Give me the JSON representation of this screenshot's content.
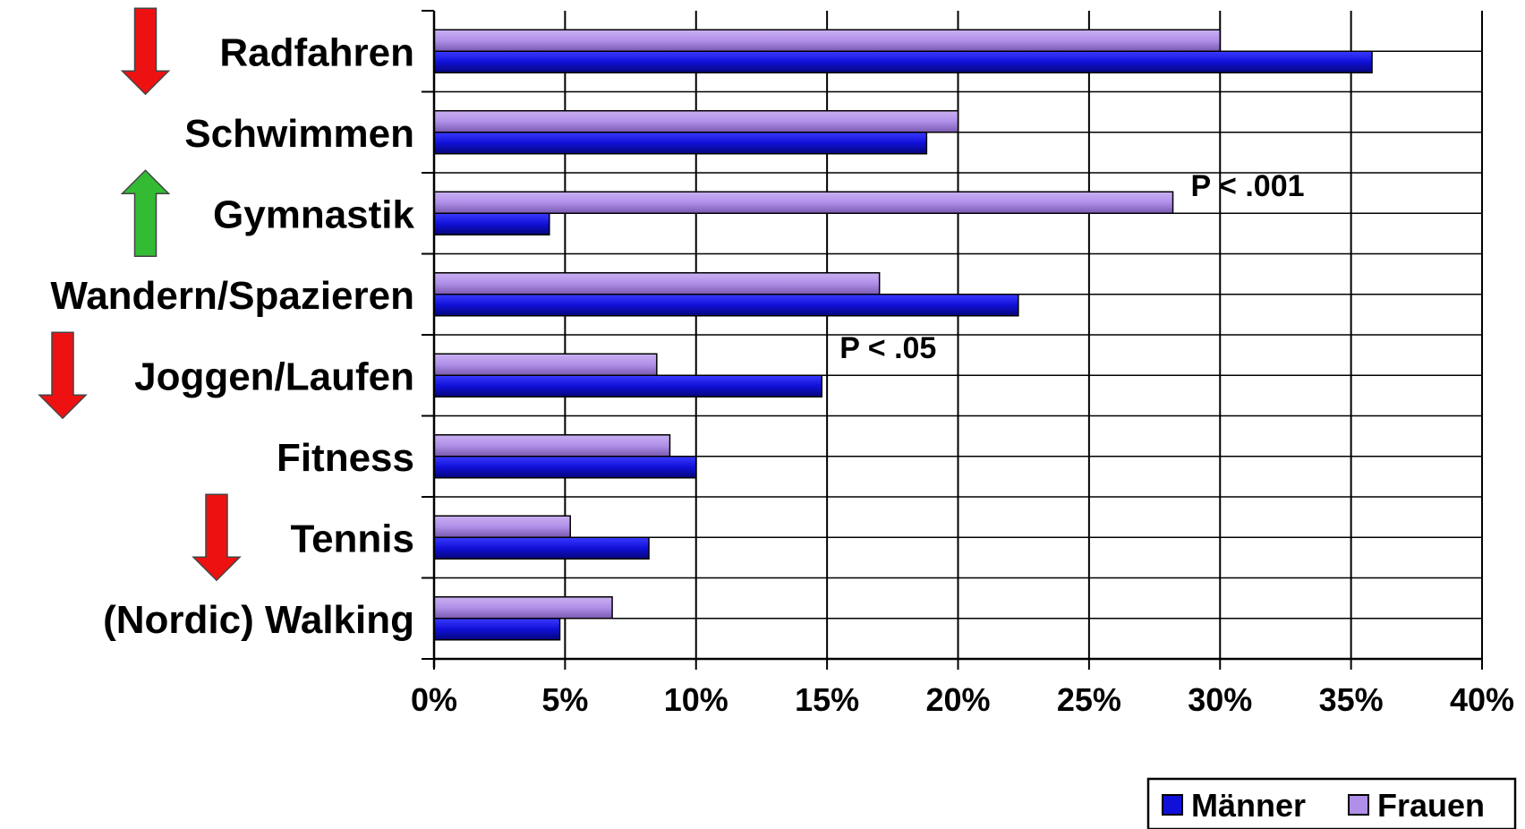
{
  "chart_data": {
    "type": "bar",
    "orientation": "horizontal",
    "categories": [
      "Radfahren",
      "Schwimmen",
      "Gymnastik",
      "Wandern/Spazieren",
      "Joggen/Laufen",
      "Fitness",
      "Tennis",
      "(Nordic) Walking"
    ],
    "series": [
      {
        "name": "Frauen",
        "color": "#B08FE8",
        "values": [
          30,
          20,
          28.2,
          17,
          8.5,
          9,
          5.2,
          6.8
        ]
      },
      {
        "name": "Männer",
        "color": "#1010D8",
        "values": [
          35.8,
          18.8,
          4.4,
          22.3,
          14.8,
          10,
          8.2,
          4.8
        ]
      }
    ],
    "xlim": [
      0,
      40
    ],
    "xticks": [
      {
        "value": 0,
        "label": "0%"
      },
      {
        "value": 5,
        "label": "5%"
      },
      {
        "value": 10,
        "label": "10%"
      },
      {
        "value": 15,
        "label": "15%"
      },
      {
        "value": 20,
        "label": "20%"
      },
      {
        "value": 25,
        "label": "25%"
      },
      {
        "value": 30,
        "label": "30%"
      },
      {
        "value": 35,
        "label": "35%"
      },
      {
        "value": 40,
        "label": "40%"
      }
    ],
    "grid": true,
    "legend": {
      "placement": "bottom-right",
      "entries": [
        {
          "name": "Männer",
          "color": "#1010D8"
        },
        {
          "name": "Frauen",
          "color": "#B08FE8"
        }
      ]
    },
    "annotations": [
      {
        "text": "P < .001",
        "category": "Gymnastik"
      },
      {
        "text": "P < .05",
        "category": "Joggen/Laufen"
      }
    ],
    "trend_arrows": [
      {
        "category": "Radfahren",
        "direction": "down",
        "color": "#EE1111"
      },
      {
        "category": "Gymnastik",
        "direction": "up",
        "color": "#33BB33"
      },
      {
        "category": "Joggen/Laufen",
        "direction": "down",
        "color": "#EE1111"
      },
      {
        "category": "Tennis",
        "direction": "down",
        "color": "#EE1111"
      }
    ]
  }
}
